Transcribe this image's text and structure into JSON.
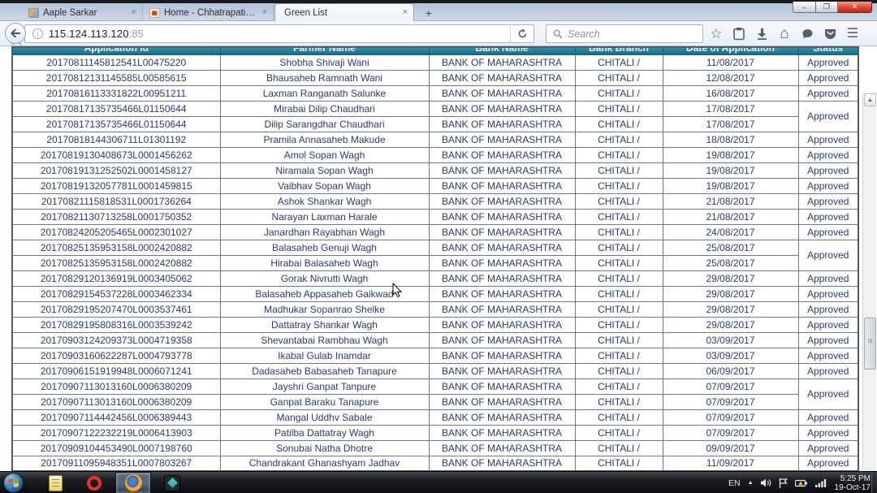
{
  "browser": {
    "tabs": [
      {
        "title": "Aaple Sarkar"
      },
      {
        "title": "Home - Chhatrapati Shivaji..."
      },
      {
        "title": "Green List"
      }
    ],
    "tab_close_glyph": "×",
    "new_tab_label": "+",
    "url": "115.124.113.120",
    "url_port": ":85",
    "info_glyph": "i",
    "search_placeholder": "Search",
    "window_controls": {
      "minimize": "–",
      "maximize": "❐",
      "close": "✕"
    },
    "icons": {
      "star": "☆",
      "home": "⌂",
      "menu": "☰",
      "scroll_up": "▲",
      "scroll_down": "▼"
    }
  },
  "table": {
    "headers": [
      "Application Id",
      "Farmer Name",
      "Bank Name",
      "Bank Branch",
      "Date of Application",
      "Status"
    ],
    "rows": [
      {
        "id": "20170811145812541L00475220",
        "farmer": "Shobha Shivaji Wani",
        "bank": "BANK OF MAHARASHTRA",
        "branch": "CHITALI /",
        "date": "11/08/2017",
        "status": "Approved",
        "status_rowspan": 1
      },
      {
        "id": "20170812131145585L00585615",
        "farmer": "Bhausaheb Ramnath Wani",
        "bank": "BANK OF MAHARASHTRA",
        "branch": "CHITALI /",
        "date": "12/08/2017",
        "status": "Approved",
        "status_rowspan": 1
      },
      {
        "id": "20170816113331822L00951211",
        "farmer": "Laxman Ranganath Salunke",
        "bank": "BANK OF MAHARASHTRA",
        "branch": "CHITALI /",
        "date": "16/08/2017",
        "status": "Approved",
        "status_rowspan": 1
      },
      {
        "id": "20170817135735466L01150644",
        "farmer": "Mirabai Dilip Chaudhari",
        "bank": "BANK OF MAHARASHTRA",
        "branch": "CHITALI /",
        "date": "17/08/2017",
        "status": "Approved",
        "status_rowspan": 2
      },
      {
        "id": "20170817135735466L01150644",
        "farmer": "Dilip Sarangdhar Chaudhari",
        "bank": "BANK OF MAHARASHTRA",
        "branch": "CHITALI /",
        "date": "17/08/2017",
        "status": null
      },
      {
        "id": "20170818144306711L01301192",
        "farmer": "Pramila Annasaheb Makude",
        "bank": "BANK OF MAHARASHTRA",
        "branch": "CHITALI /",
        "date": "18/08/2017",
        "status": "Approved",
        "status_rowspan": 1
      },
      {
        "id": "20170819130408673L0001456262",
        "farmer": "Amol Sopan Wagh",
        "bank": "BANK OF MAHARASHTRA",
        "branch": "CHITALI /",
        "date": "19/08/2017",
        "status": "Approved",
        "status_rowspan": 1
      },
      {
        "id": "20170819131252502L0001458127",
        "farmer": "Niramala Sopan Wagh",
        "bank": "BANK OF MAHARASHTRA",
        "branch": "CHITALI /",
        "date": "19/08/2017",
        "status": "Approved",
        "status_rowspan": 1
      },
      {
        "id": "20170819132057781L0001459815",
        "farmer": "Vaibhav Sopan Wagh",
        "bank": "BANK OF MAHARASHTRA",
        "branch": "CHITALI /",
        "date": "19/08/2017",
        "status": "Approved",
        "status_rowspan": 1
      },
      {
        "id": "20170821115818531L0001736264",
        "farmer": "Ashok Shankar Wagh",
        "bank": "BANK OF MAHARASHTRA",
        "branch": "CHITALI /",
        "date": "21/08/2017",
        "status": "Approved",
        "status_rowspan": 1
      },
      {
        "id": "20170821130713258L0001750352",
        "farmer": "Narayan Laxman Harale",
        "bank": "BANK OF MAHARASHTRA",
        "branch": "CHITALI /",
        "date": "21/08/2017",
        "status": "Approved",
        "status_rowspan": 1
      },
      {
        "id": "20170824205205465L0002301027",
        "farmer": "Janardhan Rayabhan Wagh",
        "bank": "BANK OF MAHARASHTRA",
        "branch": "CHITALI /",
        "date": "24/08/2017",
        "status": "Approved",
        "status_rowspan": 1
      },
      {
        "id": "20170825135953158L0002420882",
        "farmer": "Balasaheb Genuji Wagh",
        "bank": "BANK OF MAHARASHTRA",
        "branch": "CHITALI /",
        "date": "25/08/2017",
        "status": "Approved",
        "status_rowspan": 2
      },
      {
        "id": "20170825135953158L0002420882",
        "farmer": "Hirabai Balasaheb Wagh",
        "bank": "BANK OF MAHARASHTRA",
        "branch": "CHITALI /",
        "date": "25/08/2017",
        "status": null
      },
      {
        "id": "20170829120136919L0003405062",
        "farmer": "Gorak Nivrutti Wagh",
        "bank": "BANK OF MAHARASHTRA",
        "branch": "CHITALI /",
        "date": "29/08/2017",
        "status": "Approved",
        "status_rowspan": 1
      },
      {
        "id": "20170829154537228L0003462334",
        "farmer": "Balasaheb Appasaheb Gaikwad",
        "bank": "BANK OF MAHARASHTRA",
        "branch": "CHITALI /",
        "date": "29/08/2017",
        "status": "Approved",
        "status_rowspan": 1
      },
      {
        "id": "20170829195207470L0003537461",
        "farmer": "Madhukar Sopanrao Shelke",
        "bank": "BANK OF MAHARASHTRA",
        "branch": "CHITALI /",
        "date": "29/08/2017",
        "status": "Approved",
        "status_rowspan": 1
      },
      {
        "id": "20170829195808316L0003539242",
        "farmer": "Dattatray Shankar Wagh",
        "bank": "BANK OF MAHARASHTRA",
        "branch": "CHITALI /",
        "date": "29/08/2017",
        "status": "Approved",
        "status_rowspan": 1
      },
      {
        "id": "20170903124209373L0004719358",
        "farmer": "Shevantabai Rambhau Wagh",
        "bank": "BANK OF MAHARASHTRA",
        "branch": "CHITALI /",
        "date": "03/09/2017",
        "status": "Approved",
        "status_rowspan": 1
      },
      {
        "id": "20170903160622287L0004793778",
        "farmer": "Ikabal Gulab Inamdar",
        "bank": "BANK OF MAHARASHTRA",
        "branch": "CHITALI /",
        "date": "03/09/2017",
        "status": "Approved",
        "status_rowspan": 1
      },
      {
        "id": "20170906151919948L0006071241",
        "farmer": "Dadasaheb Babasaheb Tanapure",
        "bank": "BANK OF MAHARASHTRA",
        "branch": "CHITALI /",
        "date": "06/09/2017",
        "status": "Approved",
        "status_rowspan": 1
      },
      {
        "id": "20170907113013160L0006380209",
        "farmer": "Jayshri Ganpat Tanpure",
        "bank": "BANK OF MAHARASHTRA",
        "branch": "CHITALI /",
        "date": "07/09/2017",
        "status": "Approved",
        "status_rowspan": 2
      },
      {
        "id": "20170907113013160L0006380209",
        "farmer": "Ganpat Baraku Tanapure",
        "bank": "BANK OF MAHARASHTRA",
        "branch": "CHITALI /",
        "date": "07/09/2017",
        "status": null
      },
      {
        "id": "20170907114442456L0006389443",
        "farmer": "Mangal Uddhv Sabale",
        "bank": "BANK OF MAHARASHTRA",
        "branch": "CHITALI /",
        "date": "07/09/2017",
        "status": "Approved",
        "status_rowspan": 1
      },
      {
        "id": "20170907122232219L0006413903",
        "farmer": "Patilba Dattatray Wagh",
        "bank": "BANK OF MAHARASHTRA",
        "branch": "CHITALI /",
        "date": "07/09/2017",
        "status": "Approved",
        "status_rowspan": 1
      },
      {
        "id": "20170909104453490L0007198760",
        "farmer": "Sonubai Natha Dhotre",
        "bank": "BANK OF MAHARASHTRA",
        "branch": "CHITALI /",
        "date": "09/09/2017",
        "status": "Approved",
        "status_rowspan": 1
      },
      {
        "id": "20170911095948351L0007803267",
        "farmer": "Chandrakant Ghanashyam Jadhav",
        "bank": "BANK OF MAHARASHTRA",
        "branch": "CHITALI /",
        "date": "11/09/2017",
        "status": "Approved",
        "status_rowspan": 1
      }
    ]
  },
  "taskbar": {
    "language": "EN",
    "hidden_icons_glyph": "▲",
    "time": "5:25 PM",
    "date": "19-Oct-17"
  },
  "colors": {
    "header_teal": "#13708a",
    "table_text": "#2d3a6e",
    "status_approved": "#2d3a6e",
    "active_tab_bg": "#f3f7fc",
    "close_button_red": "#d8402c"
  }
}
